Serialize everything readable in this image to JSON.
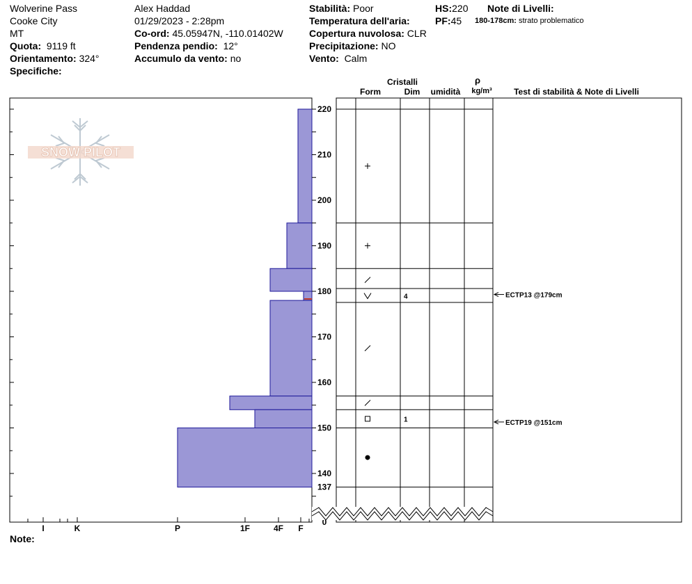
{
  "header": {
    "col1": {
      "location": "Wolverine Pass",
      "region": "Cooke City",
      "state": "MT",
      "elevation_label": "Quota:",
      "elevation_value": "9119 ft",
      "aspect_label": "Orientamento:",
      "aspect_value": "324°",
      "specifics_label": "Specifiche:"
    },
    "col2": {
      "observer": "Alex Haddad",
      "datetime": "01/29/2023 - 2:28pm",
      "coord_label": "Co-ord:",
      "coord_value": "45.05947N, -110.01402W",
      "slope_label": "Pendenza pendio:",
      "slope_value": "12°",
      "wind_load_label": "Accumulo da vento:",
      "wind_load_value": "no"
    },
    "col3": {
      "stability_label": "Stabilità:",
      "stability_value": "Poor",
      "air_temp_label": "Temperatura dell'aria:",
      "cloud_label": "Copertura nuvolosa:",
      "cloud_value": "CLR",
      "precip_label": "Precipitazione:",
      "precip_value": "NO",
      "wind_label": "Vento:",
      "wind_value": "Calm"
    },
    "col4": {
      "hs_label": "HS:",
      "hs_value": "220",
      "pf_label": "PF:",
      "pf_value": "45"
    },
    "col5": {
      "layer_notes_label": "Note di Livelli:",
      "problem_range": "180-178cm:",
      "problem_text": "strato problematico"
    }
  },
  "logo_text": "SNOW PILOT",
  "columns": {
    "crystals": "Cristalli",
    "form": "Form",
    "size": "Dim",
    "moisture": "umidità",
    "rho": "ρ",
    "density_unit": "kg/m³",
    "tests": "Test di stabilità & Note di Livelli"
  },
  "chart_data": {
    "type": "snow-profile",
    "y_unit": "cm",
    "y_ticks": [
      "220",
      "210",
      "200",
      "190",
      "180",
      "170",
      "160",
      "150",
      "140",
      "137",
      "0"
    ],
    "hardness_ticks": [
      "I",
      "K",
      "P",
      "1F",
      "4F",
      "F"
    ],
    "hardness_profile": [
      {
        "top": 220,
        "bottom": 195,
        "hardness": "F"
      },
      {
        "top": 195,
        "bottom": 185,
        "hardness": "F+"
      },
      {
        "top": 185,
        "bottom": 180,
        "hardness": "4F-"
      },
      {
        "top": 180,
        "bottom": 178,
        "hardness": "F-"
      },
      {
        "top": 178,
        "bottom": 157,
        "hardness": "4F-"
      },
      {
        "top": 157,
        "bottom": 154,
        "hardness": "1F-"
      },
      {
        "top": 154,
        "bottom": 150,
        "hardness": "4F+"
      },
      {
        "top": 150,
        "bottom": 137,
        "hardness": "P"
      }
    ],
    "layer_boundaries": [
      220,
      195,
      185,
      180.5,
      177.5,
      157,
      154,
      150,
      137
    ],
    "crystals": [
      {
        "y": 207.5,
        "symbol": "+"
      },
      {
        "y": 190,
        "symbol": "+"
      },
      {
        "y": 182.5,
        "symbol": "/"
      },
      {
        "y": 179,
        "symbol": "V",
        "size": "4"
      },
      {
        "y": 167.5,
        "symbol": "/"
      },
      {
        "y": 155.5,
        "symbol": "/"
      },
      {
        "y": 152,
        "symbol": "□",
        "size": "1"
      },
      {
        "y": 143.5,
        "symbol": "●"
      }
    ],
    "tests": [
      {
        "y": 179,
        "label": "ECTP13 @179cm"
      },
      {
        "y": 151,
        "label": "ECTP19 @151cm"
      }
    ]
  },
  "footer": {
    "notes_label": "Note:"
  }
}
